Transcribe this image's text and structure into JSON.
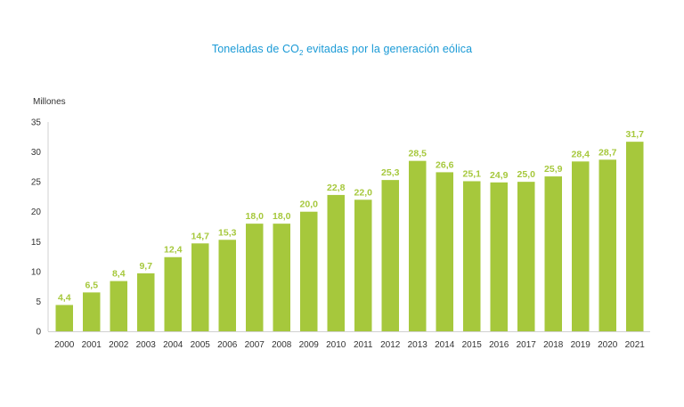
{
  "chart_data": {
    "type": "bar",
    "title": {
      "prefix": "Toneladas de CO",
      "subscript": "2",
      "suffix": " evitadas por la generación eólica"
    },
    "ylabel": "Millones",
    "xlabel": "",
    "ylim": [
      0,
      35
    ],
    "yticks": [
      "0",
      "5",
      "10",
      "15",
      "20",
      "25",
      "30",
      "35"
    ],
    "grid": false,
    "bar_color": "#a6c83c",
    "categories": [
      "2000",
      "2001",
      "2002",
      "2003",
      "2004",
      "2005",
      "2006",
      "2007",
      "2008",
      "2009",
      "2010",
      "2011",
      "2012",
      "2013",
      "2014",
      "2015",
      "2016",
      "2017",
      "2018",
      "2019",
      "2020",
      "2021"
    ],
    "values": [
      4.4,
      6.5,
      8.4,
      9.7,
      12.4,
      14.7,
      15.3,
      18.0,
      18.0,
      20.0,
      22.8,
      22.0,
      25.3,
      28.5,
      26.6,
      25.1,
      24.9,
      25.0,
      25.9,
      28.4,
      28.7,
      31.7
    ],
    "value_labels": [
      "4,4",
      "6,5",
      "8,4",
      "9,7",
      "12,4",
      "14,7",
      "15,3",
      "18,0",
      "18,0",
      "20,0",
      "22,8",
      "22,0",
      "25,3",
      "28,5",
      "26,6",
      "25,1",
      "24,9",
      "25,0",
      "25,9",
      "28,4",
      "28,7",
      "31,7"
    ]
  }
}
